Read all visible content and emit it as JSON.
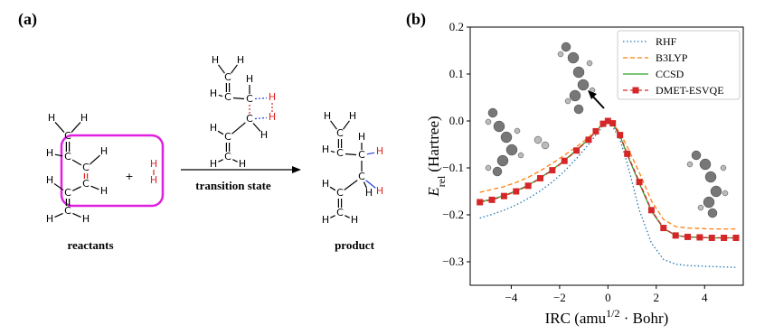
{
  "panel_a": {
    "label": "(a)",
    "reactants": {
      "caption": "reactants",
      "atoms": [
        "H",
        "H",
        "C",
        "H",
        "C",
        "H",
        "C",
        "C",
        "H",
        "C",
        "H",
        "C",
        "H",
        "H"
      ]
    },
    "plus": "+",
    "h2": [
      "H",
      "H"
    ],
    "arrow_label": "transition state",
    "transition_state": {
      "atoms": [
        "H",
        "H",
        "C",
        "H",
        "C",
        "H",
        "C",
        "H",
        "H",
        "C",
        "H",
        "C",
        "H",
        "C",
        "H",
        "H"
      ]
    },
    "product": {
      "caption": "product",
      "atoms": [
        "H",
        "H",
        "C",
        "H",
        "C",
        "H",
        "C",
        "H",
        "H",
        "C",
        "H",
        "C",
        "H",
        "C",
        "H",
        "H"
      ]
    }
  },
  "chart_data": {
    "type": "line",
    "title": "(b)",
    "ylabel": {
      "symbol": "E",
      "subscript": "rel",
      "unit": "(Hartree)"
    },
    "xlabel": {
      "before": "IRC (amu",
      "superscript": "1/2",
      "after": " · Bohr)"
    },
    "x": [
      -5.3,
      -4.8,
      -4.3,
      -3.8,
      -3.3,
      -2.8,
      -2.3,
      -1.8,
      -1.3,
      -0.8,
      -0.5,
      -0.2,
      0,
      0.2,
      0.5,
      0.8,
      1.3,
      1.8,
      2.3,
      2.8,
      3.3,
      3.8,
      4.3,
      4.8,
      5.3
    ],
    "series": [
      {
        "name": "RHF",
        "color": "#1f77b4",
        "dash": "dotted",
        "values": [
          -0.207,
          -0.199,
          -0.19,
          -0.179,
          -0.165,
          -0.149,
          -0.13,
          -0.107,
          -0.08,
          -0.05,
          -0.03,
          -0.01,
          0,
          -0.012,
          -0.04,
          -0.09,
          -0.19,
          -0.26,
          -0.295,
          -0.305,
          -0.308,
          -0.309,
          -0.31,
          -0.311,
          -0.312
        ]
      },
      {
        "name": "B3LYP",
        "color": "#ff7f0e",
        "dash": "dashed",
        "values": [
          -0.152,
          -0.146,
          -0.14,
          -0.131,
          -0.12,
          -0.106,
          -0.09,
          -0.073,
          -0.055,
          -0.035,
          -0.02,
          -0.006,
          0,
          -0.006,
          -0.025,
          -0.055,
          -0.11,
          -0.17,
          -0.21,
          -0.225,
          -0.228,
          -0.229,
          -0.23,
          -0.23,
          -0.23
        ]
      },
      {
        "name": "CCSD",
        "color": "#2ca02c",
        "dash": "solid",
        "values": [
          -0.172,
          -0.167,
          -0.159,
          -0.149,
          -0.137,
          -0.121,
          -0.104,
          -0.084,
          -0.062,
          -0.039,
          -0.022,
          -0.006,
          0,
          -0.006,
          -0.032,
          -0.072,
          -0.133,
          -0.192,
          -0.229,
          -0.244,
          -0.247,
          -0.248,
          -0.249,
          -0.249,
          -0.249
        ]
      },
      {
        "name": "DMET-ESVQE",
        "color": "#d62728",
        "dash": "dashed",
        "marker": "square",
        "values": [
          -0.173,
          -0.168,
          -0.16,
          -0.15,
          -0.138,
          -0.122,
          -0.105,
          -0.085,
          -0.063,
          -0.04,
          -0.022,
          -0.006,
          0,
          -0.005,
          -0.03,
          -0.07,
          -0.13,
          -0.19,
          -0.228,
          -0.244,
          -0.247,
          -0.248,
          -0.249,
          -0.249,
          -0.249
        ]
      }
    ],
    "xlim": [
      -5.7,
      5.6
    ],
    "ylim": [
      -0.35,
      0.2
    ],
    "xticks": [
      {
        "value": -4,
        "label": "−4"
      },
      {
        "value": -2,
        "label": "−2"
      },
      {
        "value": 0,
        "label": "0"
      },
      2,
      4
    ],
    "yticks": [
      {
        "value": -0.3,
        "label": "−0.3"
      },
      {
        "value": -0.2,
        "label": "−0.2"
      },
      {
        "value": -0.1,
        "label": "−0.1"
      },
      {
        "value": 0,
        "label": "0.0"
      },
      0.1,
      0.2
    ],
    "legend": "upper right"
  }
}
